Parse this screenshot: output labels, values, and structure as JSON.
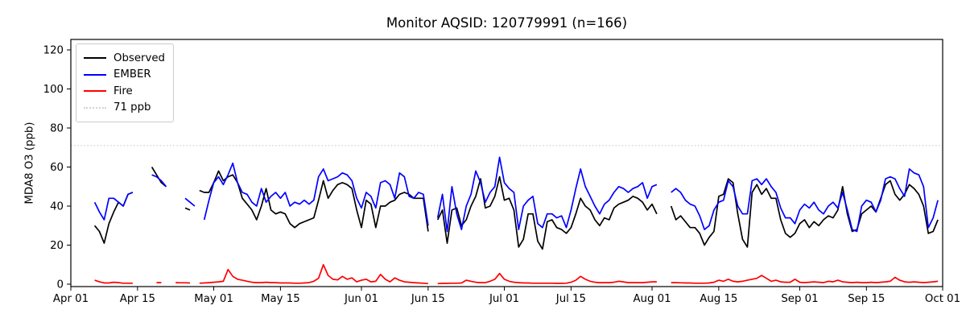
{
  "chart_data": {
    "type": "line",
    "title": "Monitor AQSID: 120779991 (n=166)",
    "xlabel": "",
    "ylabel": "MDA8 O3 (ppb)",
    "ylim": [
      0,
      125
    ],
    "yticks": [
      0,
      20,
      40,
      60,
      80,
      100,
      120
    ],
    "grid": false,
    "legend_position": "upper-left",
    "x_axis": {
      "start": "Apr 01",
      "end": "Oct 01",
      "n_days": 184,
      "unit": "day"
    },
    "xticks": [
      "Apr 01",
      "Apr 15",
      "May 01",
      "May 15",
      "Jun 01",
      "Jun 15",
      "Jul 01",
      "Jul 15",
      "Aug 01",
      "Aug 15",
      "Sep 01",
      "Sep 15",
      "Oct 01"
    ],
    "xtick_days": [
      1,
      15,
      31,
      45,
      62,
      76,
      92,
      106,
      123,
      137,
      154,
      168,
      184
    ],
    "threshold": {
      "label": "71 ppb",
      "value": 71,
      "color": "#d3d3d3",
      "style": "dotted"
    },
    "legend": [
      {
        "label": "Observed",
        "color": "#000000",
        "style": "solid"
      },
      {
        "label": "EMBER",
        "color": "#0000ff",
        "style": "solid"
      },
      {
        "label": "Fire",
        "color": "#ff0000",
        "style": "solid"
      },
      {
        "label": "71 ppb",
        "color": "#d3d3d3",
        "style": "dotted"
      }
    ],
    "series": [
      {
        "name": "Observed",
        "color": "#000000",
        "values": [
          null,
          null,
          null,
          null,
          null,
          30,
          27,
          21,
          31,
          37,
          42,
          40,
          46,
          47,
          null,
          null,
          null,
          60,
          56,
          52,
          50,
          null,
          null,
          null,
          39,
          38,
          null,
          48,
          47,
          47,
          52,
          58,
          53,
          55,
          56,
          52,
          44,
          41,
          38,
          33,
          40,
          49,
          38,
          36,
          37,
          36,
          31,
          29,
          31,
          32,
          33,
          34,
          43,
          53,
          44,
          48,
          51,
          52,
          51,
          49,
          38,
          29,
          43,
          41,
          29,
          40,
          40,
          42,
          43,
          46,
          47,
          46,
          44,
          44,
          44,
          27,
          null,
          33,
          38,
          21,
          38,
          39,
          30,
          33,
          40,
          45,
          54,
          39,
          40,
          45,
          55,
          43,
          44,
          38,
          19,
          23,
          36,
          36,
          22,
          18,
          32,
          33,
          29,
          28,
          26,
          29,
          36,
          44,
          40,
          38,
          33,
          30,
          34,
          33,
          39,
          41,
          42,
          43,
          45,
          44,
          42,
          38,
          41,
          36,
          null,
          null,
          40,
          33,
          35,
          32,
          29,
          29,
          26,
          20,
          24,
          27,
          45,
          46,
          54,
          52,
          36,
          23,
          19,
          47,
          51,
          46,
          49,
          44,
          44,
          33,
          26,
          24,
          26,
          31,
          33,
          29,
          32,
          30,
          33,
          35,
          34,
          38,
          50,
          36,
          27,
          28,
          36,
          38,
          40,
          37,
          44,
          51,
          53,
          46,
          43,
          46,
          51,
          49,
          46,
          40,
          26,
          27,
          33,
          null
        ]
      },
      {
        "name": "EMBER",
        "color": "#0000ff",
        "values": [
          null,
          null,
          null,
          null,
          null,
          42,
          37,
          33,
          44,
          44,
          42,
          40,
          46,
          47,
          null,
          null,
          null,
          56,
          55,
          53,
          50,
          null,
          null,
          null,
          44,
          42,
          40,
          null,
          33,
          43,
          52,
          55,
          51,
          56,
          62,
          52,
          47,
          46,
          42,
          40,
          49,
          42,
          45,
          47,
          44,
          47,
          40,
          42,
          41,
          43,
          41,
          43,
          55,
          59,
          53,
          54,
          55,
          57,
          56,
          53,
          44,
          39,
          47,
          45,
          39,
          52,
          53,
          51,
          44,
          57,
          55,
          45,
          44,
          47,
          46,
          30,
          null,
          34,
          46,
          27,
          50,
          36,
          28,
          40,
          46,
          58,
          52,
          42,
          47,
          50,
          65,
          52,
          49,
          47,
          28,
          40,
          43,
          45,
          31,
          29,
          36,
          36,
          34,
          35,
          29,
          38,
          49,
          59,
          50,
          45,
          40,
          36,
          41,
          43,
          47,
          50,
          49,
          47,
          49,
          50,
          52,
          44,
          50,
          51,
          null,
          null,
          47,
          49,
          47,
          43,
          41,
          40,
          35,
          28,
          30,
          38,
          42,
          43,
          53,
          50,
          40,
          36,
          36,
          53,
          54,
          51,
          54,
          50,
          47,
          39,
          34,
          34,
          31,
          38,
          41,
          39,
          42,
          38,
          36,
          40,
          42,
          39,
          47,
          38,
          28,
          27,
          40,
          43,
          42,
          37,
          43,
          54,
          55,
          54,
          49,
          45,
          59,
          57,
          56,
          50,
          29,
          34,
          43,
          null
        ]
      },
      {
        "name": "Fire",
        "color": "#ff0000",
        "values": [
          null,
          null,
          null,
          null,
          null,
          2,
          1.2,
          0.6,
          0.6,
          1,
          0.8,
          0.5,
          0.5,
          0.5,
          null,
          null,
          null,
          null,
          0.8,
          0.8,
          null,
          null,
          0.8,
          0.7,
          0.7,
          0.6,
          null,
          0.5,
          0.6,
          0.8,
          1,
          1.2,
          1.5,
          7.5,
          4,
          2.5,
          2,
          1.5,
          1,
          0.8,
          0.8,
          1,
          0.8,
          0.8,
          0.6,
          0.6,
          0.6,
          0.5,
          0.5,
          0.6,
          0.8,
          1.5,
          3,
          10,
          4.5,
          2.5,
          2.2,
          4,
          2.5,
          3.2,
          1.2,
          2,
          2.5,
          1.2,
          1.5,
          5,
          2.5,
          1.2,
          3.2,
          2,
          1.2,
          1,
          0.8,
          0.6,
          0.5,
          0.3,
          null,
          0.3,
          0.4,
          0.4,
          0.5,
          0.5,
          0.6,
          2,
          1.5,
          1,
          0.8,
          0.8,
          1.5,
          2.5,
          5.5,
          2.5,
          1.5,
          1,
          0.8,
          0.6,
          0.6,
          0.5,
          0.5,
          0.5,
          0.5,
          0.5,
          0.4,
          0.4,
          0.5,
          1,
          2,
          4,
          2.5,
          1.5,
          1,
          0.8,
          0.8,
          0.8,
          1,
          1.5,
          1.2,
          0.8,
          0.8,
          0.8,
          0.8,
          1,
          1.2,
          1.2,
          null,
          null,
          0.8,
          0.8,
          0.7,
          0.6,
          0.6,
          0.5,
          0.5,
          0.5,
          0.6,
          1,
          2,
          1.5,
          2.5,
          1.5,
          1.2,
          1.5,
          2,
          2.5,
          3,
          4.5,
          3,
          1.5,
          2,
          1.2,
          1,
          1,
          2.5,
          1,
          0.8,
          1,
          1.2,
          1,
          0.8,
          1.5,
          1.2,
          2,
          1.2,
          1,
          0.8,
          1,
          0.8,
          0.8,
          1,
          0.8,
          1,
          1.2,
          1.5,
          3.5,
          2,
          1.2,
          1,
          1.2,
          1,
          0.8,
          1,
          1.2,
          1.5,
          null
        ]
      }
    ]
  }
}
